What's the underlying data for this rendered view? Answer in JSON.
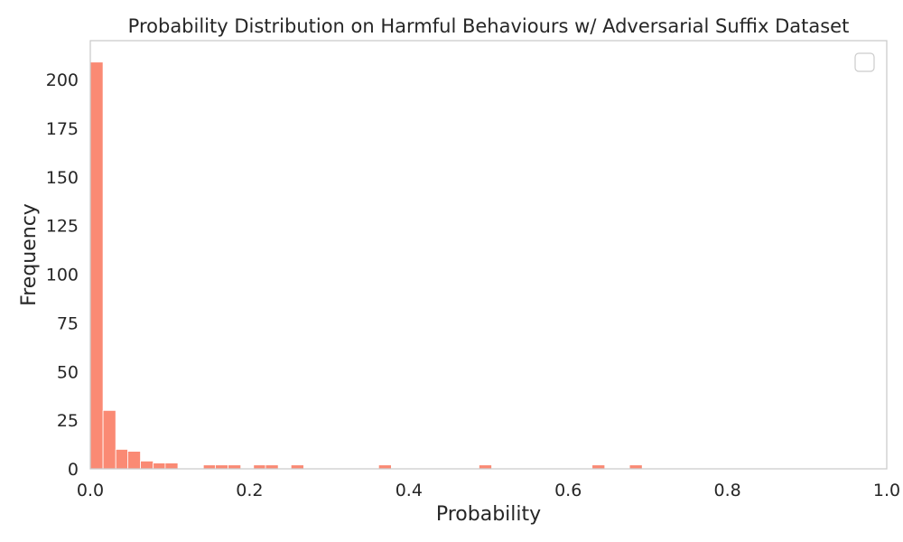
{
  "chart_data": {
    "type": "bar",
    "title": "Probability Distribution on Harmful Behaviours w/ Adversarial Suffix Dataset",
    "xlabel": "Probability",
    "ylabel": "Frequency",
    "xlim": [
      0,
      1
    ],
    "ylim": [
      0,
      220
    ],
    "xticks": [
      "0.0",
      "0.2",
      "0.4",
      "0.6",
      "0.8",
      "1.0"
    ],
    "yticks": [
      "0",
      "25",
      "50",
      "75",
      "100",
      "125",
      "150",
      "175",
      "200"
    ],
    "grid": false,
    "legend": "top-right (empty)",
    "bar_color": "#FA8A74",
    "bins": [
      {
        "x0": 0.0,
        "x1": 0.016,
        "count": 209
      },
      {
        "x0": 0.016,
        "x1": 0.032,
        "count": 30
      },
      {
        "x0": 0.032,
        "x1": 0.047,
        "count": 10
      },
      {
        "x0": 0.047,
        "x1": 0.063,
        "count": 9
      },
      {
        "x0": 0.063,
        "x1": 0.079,
        "count": 4
      },
      {
        "x0": 0.079,
        "x1": 0.094,
        "count": 3
      },
      {
        "x0": 0.094,
        "x1": 0.11,
        "count": 3
      },
      {
        "x0": 0.142,
        "x1": 0.157,
        "count": 2
      },
      {
        "x0": 0.157,
        "x1": 0.173,
        "count": 2
      },
      {
        "x0": 0.173,
        "x1": 0.189,
        "count": 2
      },
      {
        "x0": 0.205,
        "x1": 0.22,
        "count": 2
      },
      {
        "x0": 0.22,
        "x1": 0.236,
        "count": 2
      },
      {
        "x0": 0.252,
        "x1": 0.268,
        "count": 2
      },
      {
        "x0": 0.362,
        "x1": 0.378,
        "count": 2
      },
      {
        "x0": 0.488,
        "x1": 0.504,
        "count": 2
      },
      {
        "x0": 0.63,
        "x1": 0.646,
        "count": 2
      },
      {
        "x0": 0.677,
        "x1": 0.693,
        "count": 2
      }
    ]
  }
}
